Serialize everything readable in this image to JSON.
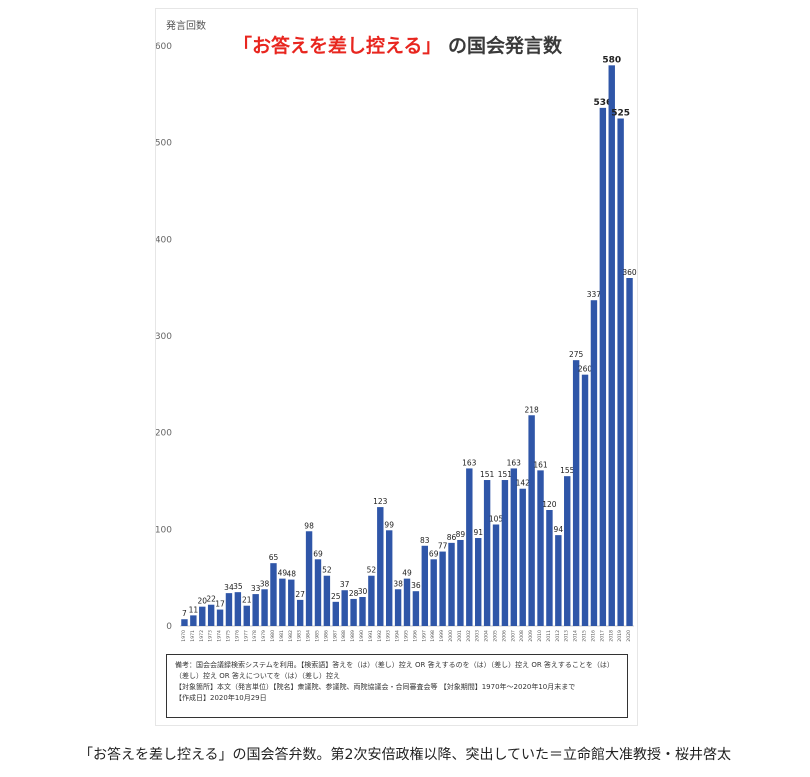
{
  "chart_data": {
    "type": "bar",
    "title_highlight": "「お答えを差し控える」",
    "title_rest": "の国会発言数",
    "ylabel": "発言回数",
    "ylim": [
      0,
      600
    ],
    "yticks": [
      0,
      100,
      200,
      300,
      400,
      500,
      600
    ],
    "bar_color": "#2f56a8",
    "title_highlight_color": "#e8261f",
    "categories": [
      "1970",
      "1971",
      "1972",
      "1973",
      "1974",
      "1975",
      "1976",
      "1977",
      "1978",
      "1979",
      "1980",
      "1981",
      "1982",
      "1983",
      "1984",
      "1985",
      "1986",
      "1987",
      "1988",
      "1989",
      "1990",
      "1991",
      "1992",
      "1993",
      "1994",
      "1995",
      "1996",
      "1997",
      "1998",
      "1999",
      "2000",
      "2001",
      "2002",
      "2003",
      "2004",
      "2005",
      "2006",
      "2007",
      "2008",
      "2009",
      "2010",
      "2011",
      "2012",
      "2013",
      "2014",
      "2015",
      "2016",
      "2017",
      "2018",
      "2019",
      "2020"
    ],
    "values": [
      7,
      11,
      20,
      22,
      17,
      34,
      35,
      21,
      33,
      38,
      65,
      49,
      48,
      27,
      98,
      69,
      52,
      25,
      37,
      28,
      30,
      52,
      123,
      99,
      38,
      49,
      36,
      83,
      69,
      77,
      86,
      89,
      163,
      91,
      151,
      105,
      151,
      163,
      142,
      218,
      161,
      120,
      94,
      155,
      275,
      260,
      337,
      536,
      580,
      525,
      360
    ],
    "labels": [
      "7",
      "11",
      "20",
      "22",
      "17",
      "34",
      "35",
      "21",
      "33",
      "38",
      "65",
      "49",
      "48",
      "27",
      "98",
      "69",
      "52",
      "25",
      "37",
      "28",
      "30",
      "52",
      "123",
      "99",
      "38",
      "49",
      "36",
      "83",
      "69",
      "77",
      "86",
      "89",
      "163",
      "91",
      "151",
      "105",
      "151",
      "163",
      "142",
      "218",
      "161",
      "120",
      "94",
      "155",
      "275",
      "260",
      "337",
      "536",
      "580",
      "525",
      "360"
    ],
    "notes": [
      "備考：国会会議録検索システムを利用。【検索語】答えを（は）（差し）控え OR 答えするのを（は）（差し）控え OR 答えすることを（は）（差し）控え OR 答えについてを（は）（差し）控え",
      "【対象箇所】本文（発言単位）【院名】衆議院、参議院、両院協議会・合同審査会等 【対象期間】1970年〜2020年10月末まで",
      "【作成日】2020年10月29日"
    ]
  },
  "caption": "「お答えを差し控える」の国会答弁数。第2次安倍政権以降、突出していた＝立命館大准教授・桜井啓太"
}
